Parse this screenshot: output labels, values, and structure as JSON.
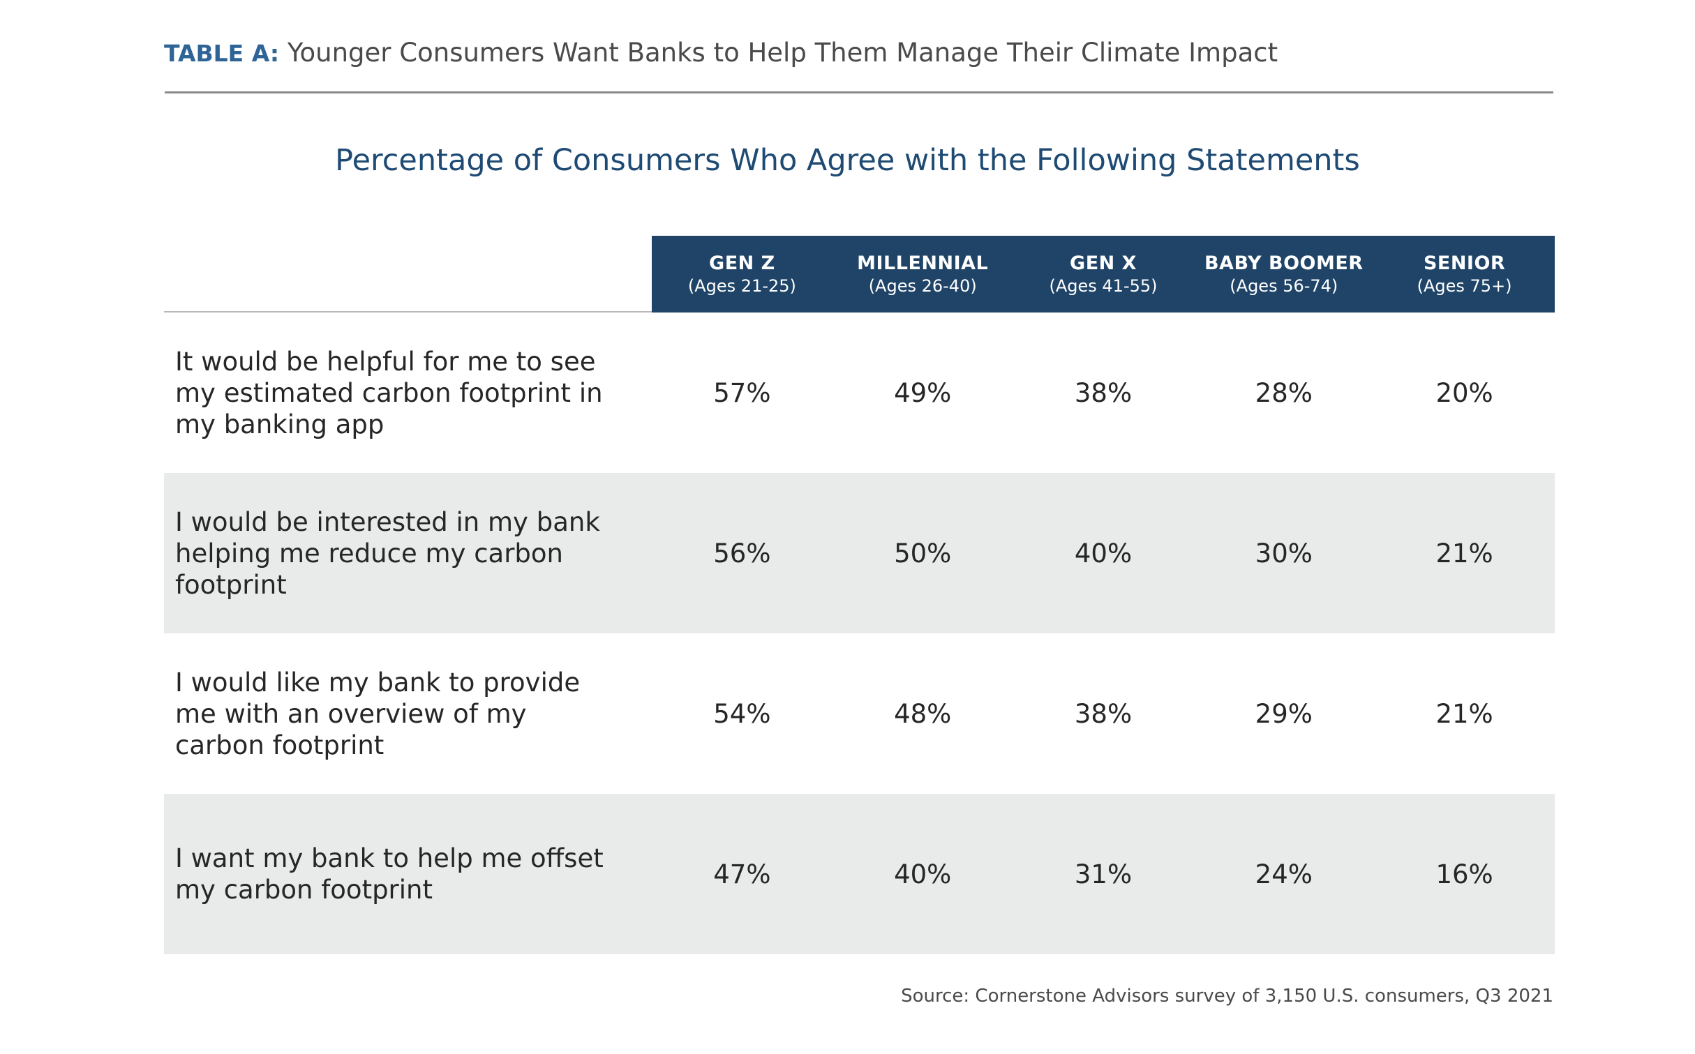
{
  "header": {
    "table_label": "TABLE A:",
    "table_title": "Younger Consumers Want Banks to Help Them Manage Their Climate Impact"
  },
  "chart_data": {
    "type": "table",
    "title": "Percentage of Consumers Who Agree with the Following Statements",
    "columns": [
      {
        "name": "GEN Z",
        "ages": "(Ages 21-25)"
      },
      {
        "name": "MILLENNIAL",
        "ages": "(Ages 26-40)"
      },
      {
        "name": "GEN X",
        "ages": "(Ages 41-55)"
      },
      {
        "name": "BABY BOOMER",
        "ages": "(Ages 56-74)"
      },
      {
        "name": "SENIOR",
        "ages": "(Ages 75+)"
      }
    ],
    "rows": [
      {
        "statement": "It would be helpful for me to see my estimated carbon footprint in my banking app",
        "cells": [
          "57%",
          "49%",
          "38%",
          "28%",
          "20%"
        ]
      },
      {
        "statement": "I would be interested in my bank helping me reduce my carbon footprint",
        "cells": [
          "56%",
          "50%",
          "40%",
          "30%",
          "21%"
        ]
      },
      {
        "statement": "I would like my bank to provide me with an overview of my carbon footprint",
        "cells": [
          "54%",
          "48%",
          "38%",
          "29%",
          "21%"
        ]
      },
      {
        "statement": "I want my bank to help me offset my carbon footprint",
        "cells": [
          "47%",
          "40%",
          "31%",
          "24%",
          "16%"
        ]
      }
    ]
  },
  "footer": {
    "source": "Source: Cornerstone Advisors survey of 3,150 U.S. consumers, Q3 2021"
  },
  "colors": {
    "header_band": "#1f4467",
    "title_blue": "#1e4a73",
    "label_blue": "#2f6496",
    "row_shade": "#e9eaea"
  }
}
